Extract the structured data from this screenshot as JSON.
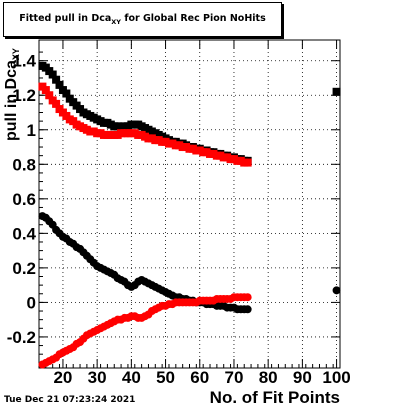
{
  "title_prefix": "Fitted pull in Dca",
  "title_sub": "XY",
  "title_suffix": " for Global Rec Pion NoHits",
  "timestamp": "Tue Dec 21 07:23:24 2021",
  "chart_data": {
    "type": "scatter",
    "title": "Fitted pull in Dca_XY for Global Rec Pion NoHits",
    "xlabel": "No. of Fit Points",
    "ylabel_prefix": "pull in Dca",
    "ylabel_sub": "XY",
    "xlim": [
      13,
      101
    ],
    "ylim": [
      -0.38,
      1.52
    ],
    "xticks": [
      20,
      30,
      40,
      50,
      60,
      70,
      80,
      90,
      100
    ],
    "yticks": [
      -0.2,
      0,
      0.2,
      0.4,
      0.6,
      0.8,
      1,
      1.2,
      1.4
    ],
    "ytick_labels": [
      "-0.2",
      "0",
      "0.2",
      "0.4",
      "0.6",
      "0.8",
      "1",
      "1.2",
      "1.4"
    ],
    "grid": true,
    "colors": {
      "black": "#000000",
      "red": "#ff0000"
    },
    "series": [
      {
        "color": "#000000",
        "marker": "square",
        "points": [
          [
            14,
            1.37
          ],
          [
            15,
            1.36
          ],
          [
            16,
            1.34
          ],
          [
            17,
            1.32
          ],
          [
            18,
            1.29
          ],
          [
            19,
            1.26
          ],
          [
            20,
            1.23
          ],
          [
            21,
            1.21
          ],
          [
            22,
            1.18
          ],
          [
            23,
            1.16
          ],
          [
            24,
            1.14
          ],
          [
            25,
            1.12
          ],
          [
            26,
            1.1
          ],
          [
            27,
            1.09
          ],
          [
            28,
            1.08
          ],
          [
            29,
            1.07
          ],
          [
            30,
            1.06
          ],
          [
            31,
            1.05
          ],
          [
            32,
            1.04
          ],
          [
            33,
            1.04
          ],
          [
            34,
            1.03
          ],
          [
            35,
            1.02
          ],
          [
            36,
            1.02
          ],
          [
            37,
            1.01
          ],
          [
            38,
            1.02
          ],
          [
            39,
            1.02
          ],
          [
            40,
            1.03
          ],
          [
            41,
            1.03
          ],
          [
            42,
            1.03
          ],
          [
            43,
            1.02
          ],
          [
            44,
            1.01
          ],
          [
            45,
            1.0
          ],
          [
            46,
            0.99
          ],
          [
            47,
            0.98
          ],
          [
            48,
            0.97
          ],
          [
            49,
            0.96
          ],
          [
            50,
            0.95
          ],
          [
            51,
            0.94
          ],
          [
            52,
            0.93
          ],
          [
            53,
            0.93
          ],
          [
            54,
            0.92
          ],
          [
            55,
            0.92
          ],
          [
            56,
            0.91
          ],
          [
            57,
            0.9
          ],
          [
            58,
            0.9
          ],
          [
            59,
            0.89
          ],
          [
            60,
            0.89
          ],
          [
            61,
            0.88
          ],
          [
            62,
            0.88
          ],
          [
            63,
            0.87
          ],
          [
            64,
            0.87
          ],
          [
            65,
            0.86
          ],
          [
            66,
            0.86
          ],
          [
            67,
            0.85
          ],
          [
            68,
            0.85
          ],
          [
            69,
            0.84
          ],
          [
            70,
            0.84
          ],
          [
            71,
            0.83
          ],
          [
            72,
            0.83
          ],
          [
            73,
            0.82
          ],
          [
            74,
            0.82
          ],
          [
            100,
            1.22
          ]
        ]
      },
      {
        "color": "#ff0000",
        "marker": "square",
        "points": [
          [
            14,
            1.25
          ],
          [
            15,
            1.23
          ],
          [
            16,
            1.2
          ],
          [
            17,
            1.17
          ],
          [
            18,
            1.15
          ],
          [
            19,
            1.12
          ],
          [
            20,
            1.1
          ],
          [
            21,
            1.08
          ],
          [
            22,
            1.06
          ],
          [
            23,
            1.05
          ],
          [
            24,
            1.03
          ],
          [
            25,
            1.02
          ],
          [
            26,
            1.01
          ],
          [
            27,
            1.0
          ],
          [
            28,
            0.99
          ],
          [
            29,
            0.99
          ],
          [
            30,
            0.98
          ],
          [
            31,
            0.98
          ],
          [
            32,
            0.97
          ],
          [
            33,
            0.97
          ],
          [
            34,
            0.97
          ],
          [
            35,
            0.97
          ],
          [
            36,
            0.97
          ],
          [
            37,
            0.98
          ],
          [
            38,
            0.98
          ],
          [
            39,
            0.98
          ],
          [
            40,
            0.98
          ],
          [
            41,
            0.98
          ],
          [
            42,
            0.97
          ],
          [
            43,
            0.97
          ],
          [
            44,
            0.96
          ],
          [
            45,
            0.95
          ],
          [
            46,
            0.95
          ],
          [
            47,
            0.94
          ],
          [
            48,
            0.94
          ],
          [
            49,
            0.93
          ],
          [
            50,
            0.93
          ],
          [
            51,
            0.92
          ],
          [
            52,
            0.92
          ],
          [
            53,
            0.91
          ],
          [
            54,
            0.91
          ],
          [
            55,
            0.9
          ],
          [
            56,
            0.9
          ],
          [
            57,
            0.89
          ],
          [
            58,
            0.89
          ],
          [
            59,
            0.88
          ],
          [
            60,
            0.88
          ],
          [
            61,
            0.87
          ],
          [
            62,
            0.87
          ],
          [
            63,
            0.86
          ],
          [
            64,
            0.86
          ],
          [
            65,
            0.85
          ],
          [
            66,
            0.85
          ],
          [
            67,
            0.84
          ],
          [
            68,
            0.84
          ],
          [
            69,
            0.83
          ],
          [
            70,
            0.83
          ],
          [
            71,
            0.82
          ],
          [
            72,
            0.82
          ],
          [
            73,
            0.81
          ],
          [
            74,
            0.81
          ]
        ]
      },
      {
        "color": "#000000",
        "marker": "circle",
        "points": [
          [
            14,
            0.5
          ],
          [
            15,
            0.49
          ],
          [
            16,
            0.47
          ],
          [
            17,
            0.45
          ],
          [
            18,
            0.42
          ],
          [
            19,
            0.4
          ],
          [
            20,
            0.38
          ],
          [
            21,
            0.37
          ],
          [
            22,
            0.35
          ],
          [
            23,
            0.34
          ],
          [
            24,
            0.32
          ],
          [
            25,
            0.31
          ],
          [
            26,
            0.29
          ],
          [
            27,
            0.27
          ],
          [
            28,
            0.25
          ],
          [
            29,
            0.23
          ],
          [
            30,
            0.21
          ],
          [
            31,
            0.2
          ],
          [
            32,
            0.19
          ],
          [
            33,
            0.18
          ],
          [
            34,
            0.17
          ],
          [
            35,
            0.16
          ],
          [
            36,
            0.14
          ],
          [
            37,
            0.13
          ],
          [
            38,
            0.12
          ],
          [
            39,
            0.1
          ],
          [
            40,
            0.09
          ],
          [
            41,
            0.1
          ],
          [
            42,
            0.12
          ],
          [
            43,
            0.13
          ],
          [
            44,
            0.12
          ],
          [
            45,
            0.11
          ],
          [
            46,
            0.1
          ],
          [
            47,
            0.09
          ],
          [
            48,
            0.08
          ],
          [
            49,
            0.07
          ],
          [
            50,
            0.06
          ],
          [
            51,
            0.05
          ],
          [
            52,
            0.04
          ],
          [
            53,
            0.03
          ],
          [
            54,
            0.03
          ],
          [
            55,
            0.02
          ],
          [
            56,
            0.02
          ],
          [
            57,
            0.01
          ],
          [
            58,
            0.01
          ],
          [
            59,
            0.0
          ],
          [
            60,
            0.0
          ],
          [
            61,
            0.0
          ],
          [
            62,
            -0.01
          ],
          [
            63,
            -0.01
          ],
          [
            64,
            -0.01
          ],
          [
            65,
            -0.02
          ],
          [
            66,
            -0.02
          ],
          [
            67,
            -0.02
          ],
          [
            68,
            -0.03
          ],
          [
            69,
            -0.03
          ],
          [
            70,
            -0.03
          ],
          [
            71,
            -0.04
          ],
          [
            72,
            -0.04
          ],
          [
            73,
            -0.04
          ],
          [
            74,
            -0.04
          ],
          [
            100,
            0.07
          ]
        ]
      },
      {
        "color": "#ff0000",
        "marker": "circle",
        "points": [
          [
            14,
            -0.36
          ],
          [
            15,
            -0.35
          ],
          [
            16,
            -0.34
          ],
          [
            17,
            -0.33
          ],
          [
            18,
            -0.32
          ],
          [
            19,
            -0.3
          ],
          [
            20,
            -0.29
          ],
          [
            21,
            -0.28
          ],
          [
            22,
            -0.27
          ],
          [
            23,
            -0.26
          ],
          [
            24,
            -0.24
          ],
          [
            25,
            -0.23
          ],
          [
            26,
            -0.21
          ],
          [
            27,
            -0.19
          ],
          [
            28,
            -0.18
          ],
          [
            29,
            -0.17
          ],
          [
            30,
            -0.16
          ],
          [
            31,
            -0.15
          ],
          [
            32,
            -0.14
          ],
          [
            33,
            -0.13
          ],
          [
            34,
            -0.12
          ],
          [
            35,
            -0.11
          ],
          [
            36,
            -0.1
          ],
          [
            37,
            -0.1
          ],
          [
            38,
            -0.09
          ],
          [
            39,
            -0.09
          ],
          [
            40,
            -0.08
          ],
          [
            41,
            -0.08
          ],
          [
            42,
            -0.09
          ],
          [
            43,
            -0.09
          ],
          [
            44,
            -0.08
          ],
          [
            45,
            -0.07
          ],
          [
            46,
            -0.05
          ],
          [
            47,
            -0.04
          ],
          [
            48,
            -0.03
          ],
          [
            49,
            -0.02
          ],
          [
            50,
            -0.02
          ],
          [
            51,
            -0.01
          ],
          [
            52,
            -0.01
          ],
          [
            53,
            0.0
          ],
          [
            54,
            0.0
          ],
          [
            55,
            0.0
          ],
          [
            56,
            0.0
          ],
          [
            57,
            0.0
          ],
          [
            58,
            0.0
          ],
          [
            59,
            0.0
          ],
          [
            60,
            0.01
          ],
          [
            61,
            0.01
          ],
          [
            62,
            0.01
          ],
          [
            63,
            0.01
          ],
          [
            64,
            0.01
          ],
          [
            65,
            0.02
          ],
          [
            66,
            0.02
          ],
          [
            67,
            0.02
          ],
          [
            68,
            0.02
          ],
          [
            69,
            0.02
          ],
          [
            70,
            0.03
          ],
          [
            71,
            0.03
          ],
          [
            72,
            0.03
          ],
          [
            73,
            0.03
          ],
          [
            74,
            0.03
          ]
        ]
      }
    ]
  }
}
